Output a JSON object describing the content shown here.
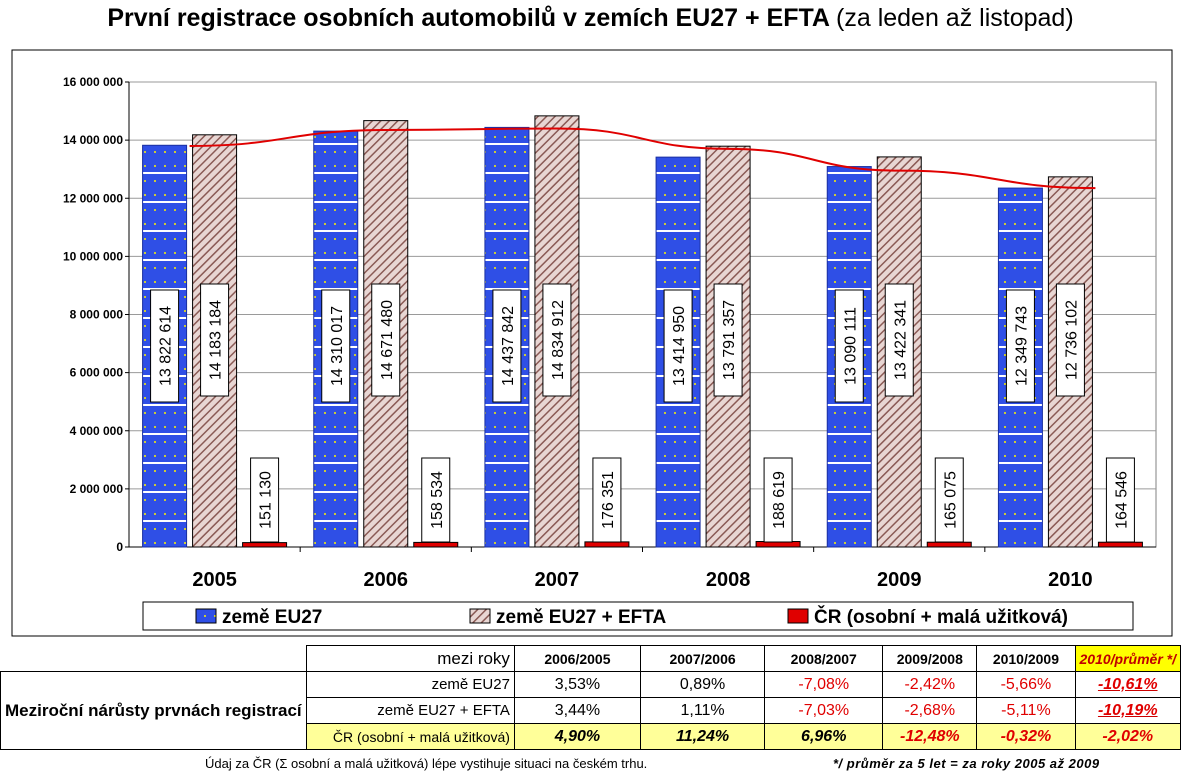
{
  "title": {
    "main": "První registrace osobních automobilů v zemích EU27 + EFTA",
    "sub": "(za leden až listopad)"
  },
  "chart_data": {
    "type": "bar",
    "categories": [
      "2005",
      "2006",
      "2007",
      "2008",
      "2009",
      "2010"
    ],
    "ylim": [
      0,
      16000000
    ],
    "yticks": [
      "0",
      "2 000 000",
      "4 000 000",
      "6 000 000",
      "8 000 000",
      "10 000 000",
      "12 000 000",
      "14 000 000",
      "16 000 000"
    ],
    "series": [
      {
        "name": "země EU27",
        "values": [
          13822614,
          14310017,
          14437842,
          13414950,
          13090111,
          12349743
        ],
        "labels": [
          "13 822 614",
          "14 310 017",
          "14 437 842",
          "13 414 950",
          "13 090 111",
          "12 349 743"
        ],
        "color": "#2f4fe6"
      },
      {
        "name": "země EU27 + EFTA",
        "values": [
          14183184,
          14671480,
          14834912,
          13791357,
          13422341,
          12736102
        ],
        "labels": [
          "14 183 184",
          "14 671 480",
          "14 834 912",
          "13 791 357",
          "13 422 341",
          "12 736 102"
        ],
        "color": "#c9a9a6"
      },
      {
        "name": "ČR (osobní + malá užitková)",
        "values": [
          151130,
          158534,
          176351,
          188619,
          165075,
          164546
        ],
        "labels": [
          "151 130",
          "158 534",
          "176 351",
          "188 619",
          "165 075",
          "164 546"
        ],
        "color": "#e00000"
      }
    ],
    "trend": {
      "values": [
        13800000,
        14350000,
        14400000,
        13700000,
        12950000,
        12350000
      ],
      "color": "#e00000"
    },
    "legend_position": "bottom",
    "grid": true
  },
  "table": {
    "lead": "Meziroční nárůsty prvnách registrací",
    "header_label": "mezi roky",
    "periods": [
      "2006/2005",
      "2007/2006",
      "2008/2007",
      "2009/2008",
      "2010/2009",
      "2010/průměr */"
    ],
    "rows": [
      {
        "label": "země EU27",
        "values": [
          "3,53%",
          "0,89%",
          "-7,08%",
          "-2,42%",
          "-5,66%",
          "-10,61%"
        ]
      },
      {
        "label": "země EU27 + EFTA",
        "values": [
          "3,44%",
          "1,11%",
          "-7,03%",
          "-2,68%",
          "-5,11%",
          "-10,19%"
        ]
      },
      {
        "label": "ČR (osobní + malá užitková)",
        "values": [
          "4,90%",
          "11,24%",
          "6,96%",
          "-12,48%",
          "-0,32%",
          "-2,02%"
        ]
      }
    ]
  },
  "notes": {
    "left": "Údaj za ČR (Σ osobní a malá užitková) lépe vystihuje situaci na českém trhu.",
    "right": "*/ průměr za 5 let = za roky 2005 až 2009"
  }
}
